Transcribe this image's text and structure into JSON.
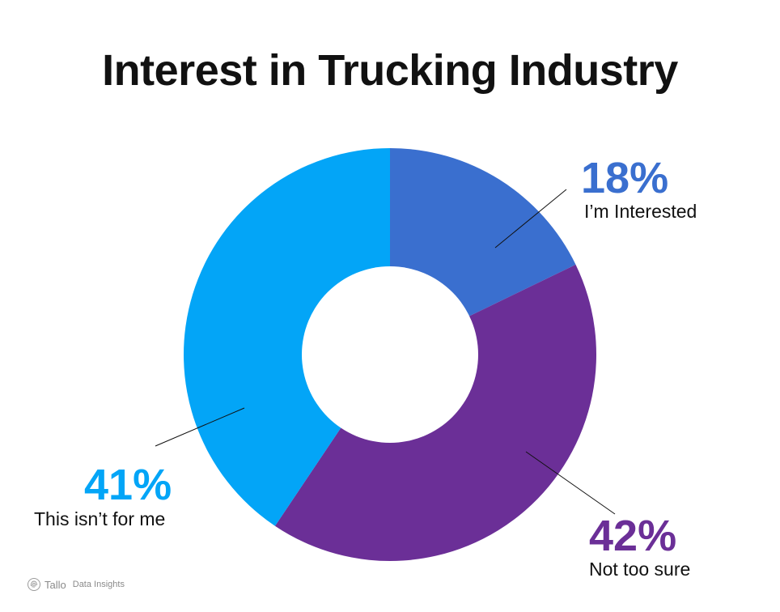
{
  "chart_data": {
    "type": "pie",
    "title": "Interest in Trucking Industry",
    "donut": true,
    "slices": [
      {
        "label": "I’m Interested",
        "value": 18,
        "value_label": "18%",
        "color": "#3A6FCF"
      },
      {
        "label": "Not too sure",
        "value": 42,
        "value_label": "42%",
        "color": "#6B2F97"
      },
      {
        "label": "This isn’t for me",
        "value": 41,
        "value_label": "41%",
        "color": "#03A5F7"
      }
    ]
  },
  "brand": {
    "name": "Tallo",
    "tagline": "Data Insights",
    "icon": "fingerprint-icon"
  }
}
